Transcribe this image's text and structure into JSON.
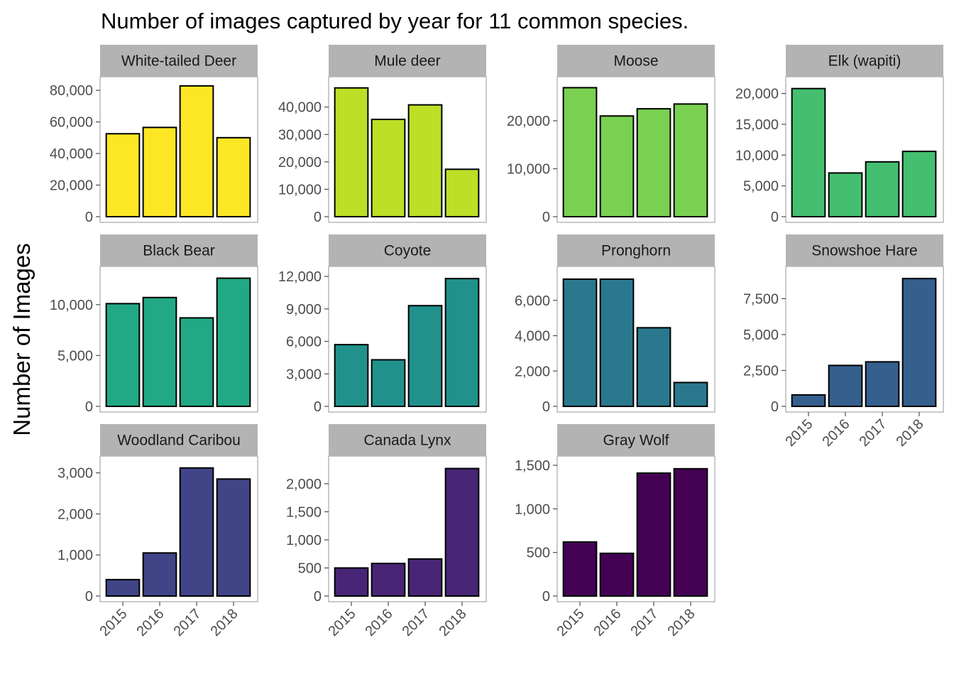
{
  "chart_data": {
    "type": "bar",
    "title": "Number of images captured by year for 11 common species.",
    "ylabel": "Number of Images",
    "xlabel": "",
    "categories": [
      "2015",
      "2016",
      "2017",
      "2018"
    ],
    "legend": "none",
    "grid": false,
    "facets": [
      {
        "name": "White-tailed Deer",
        "color": "#fde725",
        "values": [
          52500,
          56500,
          82800,
          50000
        ],
        "ylim": [
          0,
          85000
        ],
        "yticks": [
          0,
          20000,
          40000,
          60000,
          80000
        ],
        "ytick_labels": [
          "0",
          "20,000",
          "40,000",
          "60,000",
          "80,000"
        ]
      },
      {
        "name": "Mule deer",
        "color": "#bddf26",
        "values": [
          47000,
          35500,
          40800,
          17300
        ],
        "ylim": [
          0,
          49000
        ],
        "yticks": [
          0,
          10000,
          20000,
          30000,
          40000
        ],
        "ytick_labels": [
          "0",
          "10,000",
          "20,000",
          "30,000",
          "40,000"
        ]
      },
      {
        "name": "Moose",
        "color": "#7ad151",
        "values": [
          26900,
          21000,
          22500,
          23500
        ],
        "ylim": [
          0,
          28000
        ],
        "yticks": [
          0,
          10000,
          20000
        ],
        "ytick_labels": [
          "0",
          "10,000",
          "20,000"
        ]
      },
      {
        "name": "Elk (wapiti)",
        "color": "#44bf70",
        "values": [
          20800,
          7100,
          8900,
          10600
        ],
        "ylim": [
          0,
          21800
        ],
        "yticks": [
          0,
          5000,
          10000,
          15000,
          20000
        ],
        "ytick_labels": [
          "0",
          "5,000",
          "10,000",
          "15,000",
          "20,000"
        ]
      },
      {
        "name": "Black Bear",
        "color": "#22a884",
        "values": [
          10100,
          10700,
          8700,
          12600
        ],
        "ylim": [
          0,
          13200
        ],
        "yticks": [
          0,
          5000,
          10000
        ],
        "ytick_labels": [
          "0",
          "5,000",
          "10,000"
        ]
      },
      {
        "name": "Coyote",
        "color": "#21918c",
        "values": [
          5700,
          4300,
          9300,
          11800
        ],
        "ylim": [
          0,
          12400
        ],
        "yticks": [
          0,
          3000,
          6000,
          9000,
          12000
        ],
        "ytick_labels": [
          "0",
          "3,000",
          "6,000",
          "9,000",
          "12,000"
        ]
      },
      {
        "name": "Pronghorn",
        "color": "#2a788e",
        "values": [
          7200,
          7200,
          4450,
          1350
        ],
        "ylim": [
          0,
          7600
        ],
        "yticks": [
          0,
          2000,
          4000,
          6000
        ],
        "ytick_labels": [
          "0",
          "2,000",
          "4,000",
          "6,000"
        ]
      },
      {
        "name": "Snowshoe Hare",
        "color": "#355f8d",
        "values": [
          800,
          2850,
          3100,
          8900
        ],
        "ylim": [
          0,
          9350
        ],
        "yticks": [
          0,
          2500,
          5000,
          7500
        ],
        "ytick_labels": [
          "0",
          "2,500",
          "5,000",
          "7,500"
        ]
      },
      {
        "name": "Woodland Caribou",
        "color": "#414487",
        "values": [
          400,
          1050,
          3120,
          2850
        ],
        "ylim": [
          0,
          3270
        ],
        "yticks": [
          0,
          1000,
          2000,
          3000
        ],
        "ytick_labels": [
          "0",
          "1,000",
          "2,000",
          "3,000"
        ]
      },
      {
        "name": "Canada Lynx",
        "color": "#482576",
        "values": [
          500,
          580,
          660,
          2270
        ],
        "ylim": [
          0,
          2390
        ],
        "yticks": [
          0,
          500,
          1000,
          1500,
          2000
        ],
        "ytick_labels": [
          "0",
          "500",
          "1,000",
          "1,500",
          "2,000"
        ]
      },
      {
        "name": "Gray Wolf",
        "color": "#440154",
        "values": [
          620,
          490,
          1410,
          1460
        ],
        "ylim": [
          0,
          1540
        ],
        "yticks": [
          0,
          500,
          1000,
          1500
        ],
        "ytick_labels": [
          "0",
          "500",
          "1,000",
          "1,500"
        ]
      }
    ]
  }
}
